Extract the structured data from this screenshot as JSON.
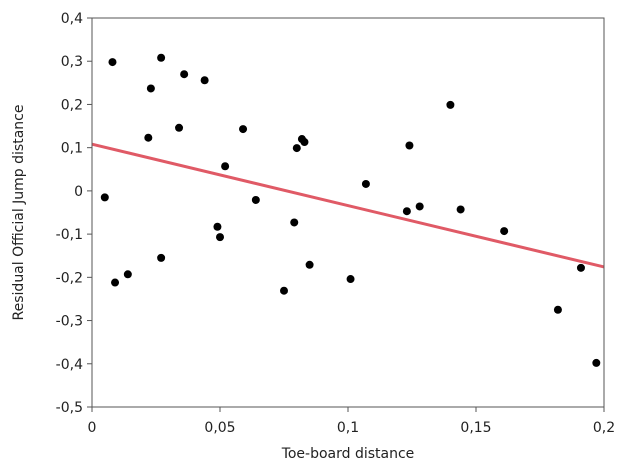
{
  "chart_data": {
    "type": "scatter",
    "title": "",
    "xlabel": "Toe-board distance",
    "ylabel": "Residual Official Jump distance",
    "xlim": [
      0,
      0.2
    ],
    "ylim": [
      -0.5,
      0.4
    ],
    "grid": false,
    "legend": "none",
    "x_ticks": [
      0,
      0.05,
      0.1,
      0.15,
      0.2
    ],
    "x_tick_labels": [
      "0",
      "0,05",
      "0,1",
      "0,15",
      "0,2"
    ],
    "y_ticks": [
      0.4,
      0.3,
      0.2,
      0.1,
      0,
      -0.1,
      -0.2,
      -0.3,
      -0.4,
      -0.5
    ],
    "y_tick_labels": [
      "0,4",
      "0,3",
      "0,2",
      "0,1",
      "0",
      "-0,1",
      "-0,2",
      "-0,3",
      "-0,4",
      "-0,5"
    ],
    "point_color": "#000000",
    "series": [
      {
        "points": [
          [
            0.005,
            -0.015
          ],
          [
            0.008,
            0.298
          ],
          [
            0.009,
            -0.212
          ],
          [
            0.014,
            -0.193
          ],
          [
            0.022,
            0.123
          ],
          [
            0.023,
            0.237
          ],
          [
            0.027,
            -0.155
          ],
          [
            0.027,
            0.308
          ],
          [
            0.034,
            0.146
          ],
          [
            0.036,
            0.27
          ],
          [
            0.044,
            0.256
          ],
          [
            0.049,
            -0.083
          ],
          [
            0.05,
            -0.107
          ],
          [
            0.052,
            0.057
          ],
          [
            0.059,
            0.143
          ],
          [
            0.064,
            -0.021
          ],
          [
            0.075,
            -0.231
          ],
          [
            0.079,
            -0.073
          ],
          [
            0.08,
            0.099
          ],
          [
            0.082,
            0.12
          ],
          [
            0.083,
            0.113
          ],
          [
            0.085,
            -0.171
          ],
          [
            0.101,
            -0.204
          ],
          [
            0.107,
            0.016
          ],
          [
            0.123,
            -0.047
          ],
          [
            0.124,
            0.105
          ],
          [
            0.128,
            -0.036
          ],
          [
            0.14,
            0.199
          ],
          [
            0.144,
            -0.043
          ],
          [
            0.161,
            -0.093
          ],
          [
            0.182,
            -0.275
          ],
          [
            0.191,
            -0.178
          ],
          [
            0.197,
            -0.398
          ]
        ]
      }
    ],
    "fit_line": {
      "color": "#e05a66",
      "points": [
        [
          0,
          0.108
        ],
        [
          0.2,
          -0.176
        ]
      ]
    }
  }
}
